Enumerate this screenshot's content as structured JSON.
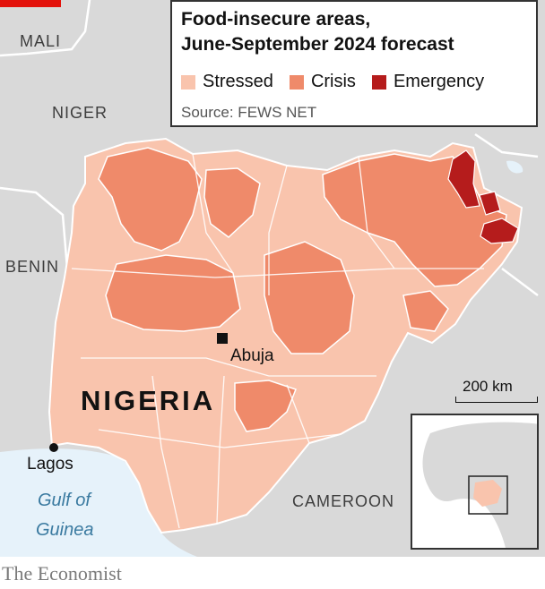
{
  "legend": {
    "title_line1": "Food-insecure areas,",
    "title_line2": "June-September 2024 forecast",
    "items": [
      {
        "label": "Stressed",
        "color": "#f9c4ad"
      },
      {
        "label": "Crisis",
        "color": "#ef8a6a"
      },
      {
        "label": "Emergency",
        "color": "#b51c1c"
      }
    ],
    "source": "Source: FEWS NET"
  },
  "labels": {
    "mali": "MALI",
    "niger": "NIGER",
    "benin": "BENIN",
    "cameroon": "CAMEROON",
    "country": "NIGERIA",
    "capital": "Abuja",
    "city": "Lagos",
    "sea_line1": "Gulf of",
    "sea_line2": "Guinea"
  },
  "scale_label": "200 km",
  "footer": "The Economist",
  "colors": {
    "land_other": "#d9d9d9",
    "water": "#e6f2fa",
    "borders": "#ffffff",
    "brand_red": "#e3120b"
  }
}
